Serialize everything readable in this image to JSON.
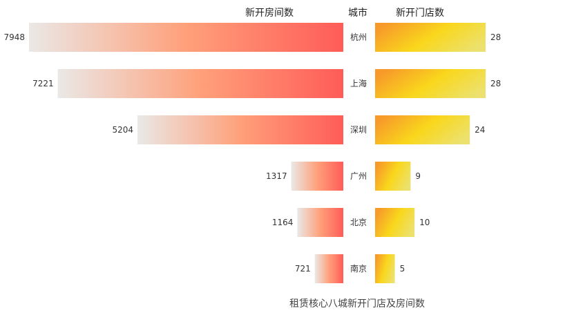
{
  "chart_data": {
    "type": "bar",
    "title": "租赁核心八城新开门店及房间数",
    "headers": {
      "left": "新开房间数",
      "center": "城市",
      "right": "新开门店数"
    },
    "categories": [
      "杭州",
      "上海",
      "深圳",
      "广州",
      "北京",
      "南京"
    ],
    "series": [
      {
        "name": "新开房间数",
        "values": [
          7948,
          7221,
          5204,
          1317,
          1164,
          721
        ]
      },
      {
        "name": "新开门店数",
        "values": [
          28,
          28,
          24,
          9,
          10,
          5
        ]
      }
    ],
    "colors": {
      "rooms_gradient": [
        "#eae8e6",
        "#ffa07a",
        "#ff5c58"
      ],
      "stores_gradient": [
        "#f79a2a",
        "#f9d71c",
        "#ece16f"
      ],
      "text": "#333333",
      "title": "#444444"
    }
  }
}
